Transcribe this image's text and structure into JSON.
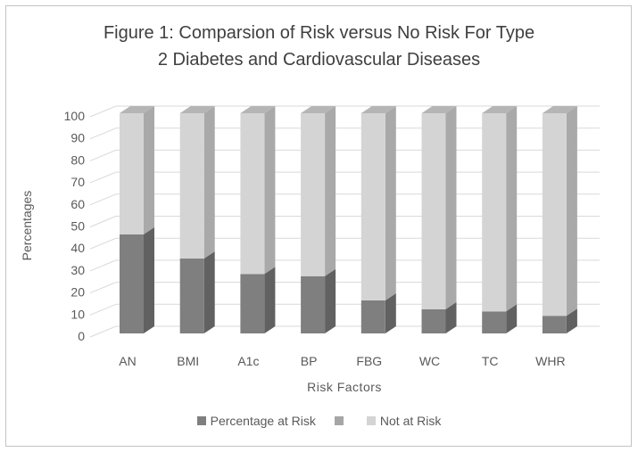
{
  "header": {
    "title_lines": [
      "Figure 1: Comparsion of Risk versus No Risk For Type",
      "2 Diabetes and Cardiovascular Diseases"
    ]
  },
  "chart_data": {
    "type": "bar",
    "stacked": true,
    "projection": "3d",
    "title": "Figure 1: Comparsion of Risk versus No Risk For Type 2 Diabetes and Cardiovascular Diseases",
    "xlabel": "Risk Factors",
    "ylabel": "Percentages",
    "categories": [
      "AN",
      "BMI",
      "A1c",
      "BP",
      "FBG",
      "WC",
      "TC",
      "WHR"
    ],
    "series": [
      {
        "name": "Percentage at Risk",
        "values": [
          45,
          34,
          27,
          26,
          15,
          11,
          10,
          8
        ],
        "color": "#7f7f7f",
        "side_color": "#616161",
        "top_color": "#8c8c8c"
      },
      {
        "name": "",
        "values": [],
        "color": "#a6a6a6"
      },
      {
        "name": "Not at Risk",
        "values": [
          55,
          66,
          73,
          74,
          85,
          89,
          90,
          92
        ],
        "color": "#d4d4d4",
        "side_color": "#a9a9a9",
        "top_color": "#b5b5b5"
      }
    ],
    "ylim": [
      0,
      100
    ],
    "yticks": [
      0,
      10,
      20,
      30,
      40,
      50,
      60,
      70,
      80,
      90,
      100
    ],
    "grid": true,
    "legend_position": "bottom"
  },
  "style": {
    "title_color": "#3f3f3f",
    "text_color": "#595959",
    "grid_color": "#d9d9d9",
    "frame_border_color": "#c3c3c3"
  }
}
